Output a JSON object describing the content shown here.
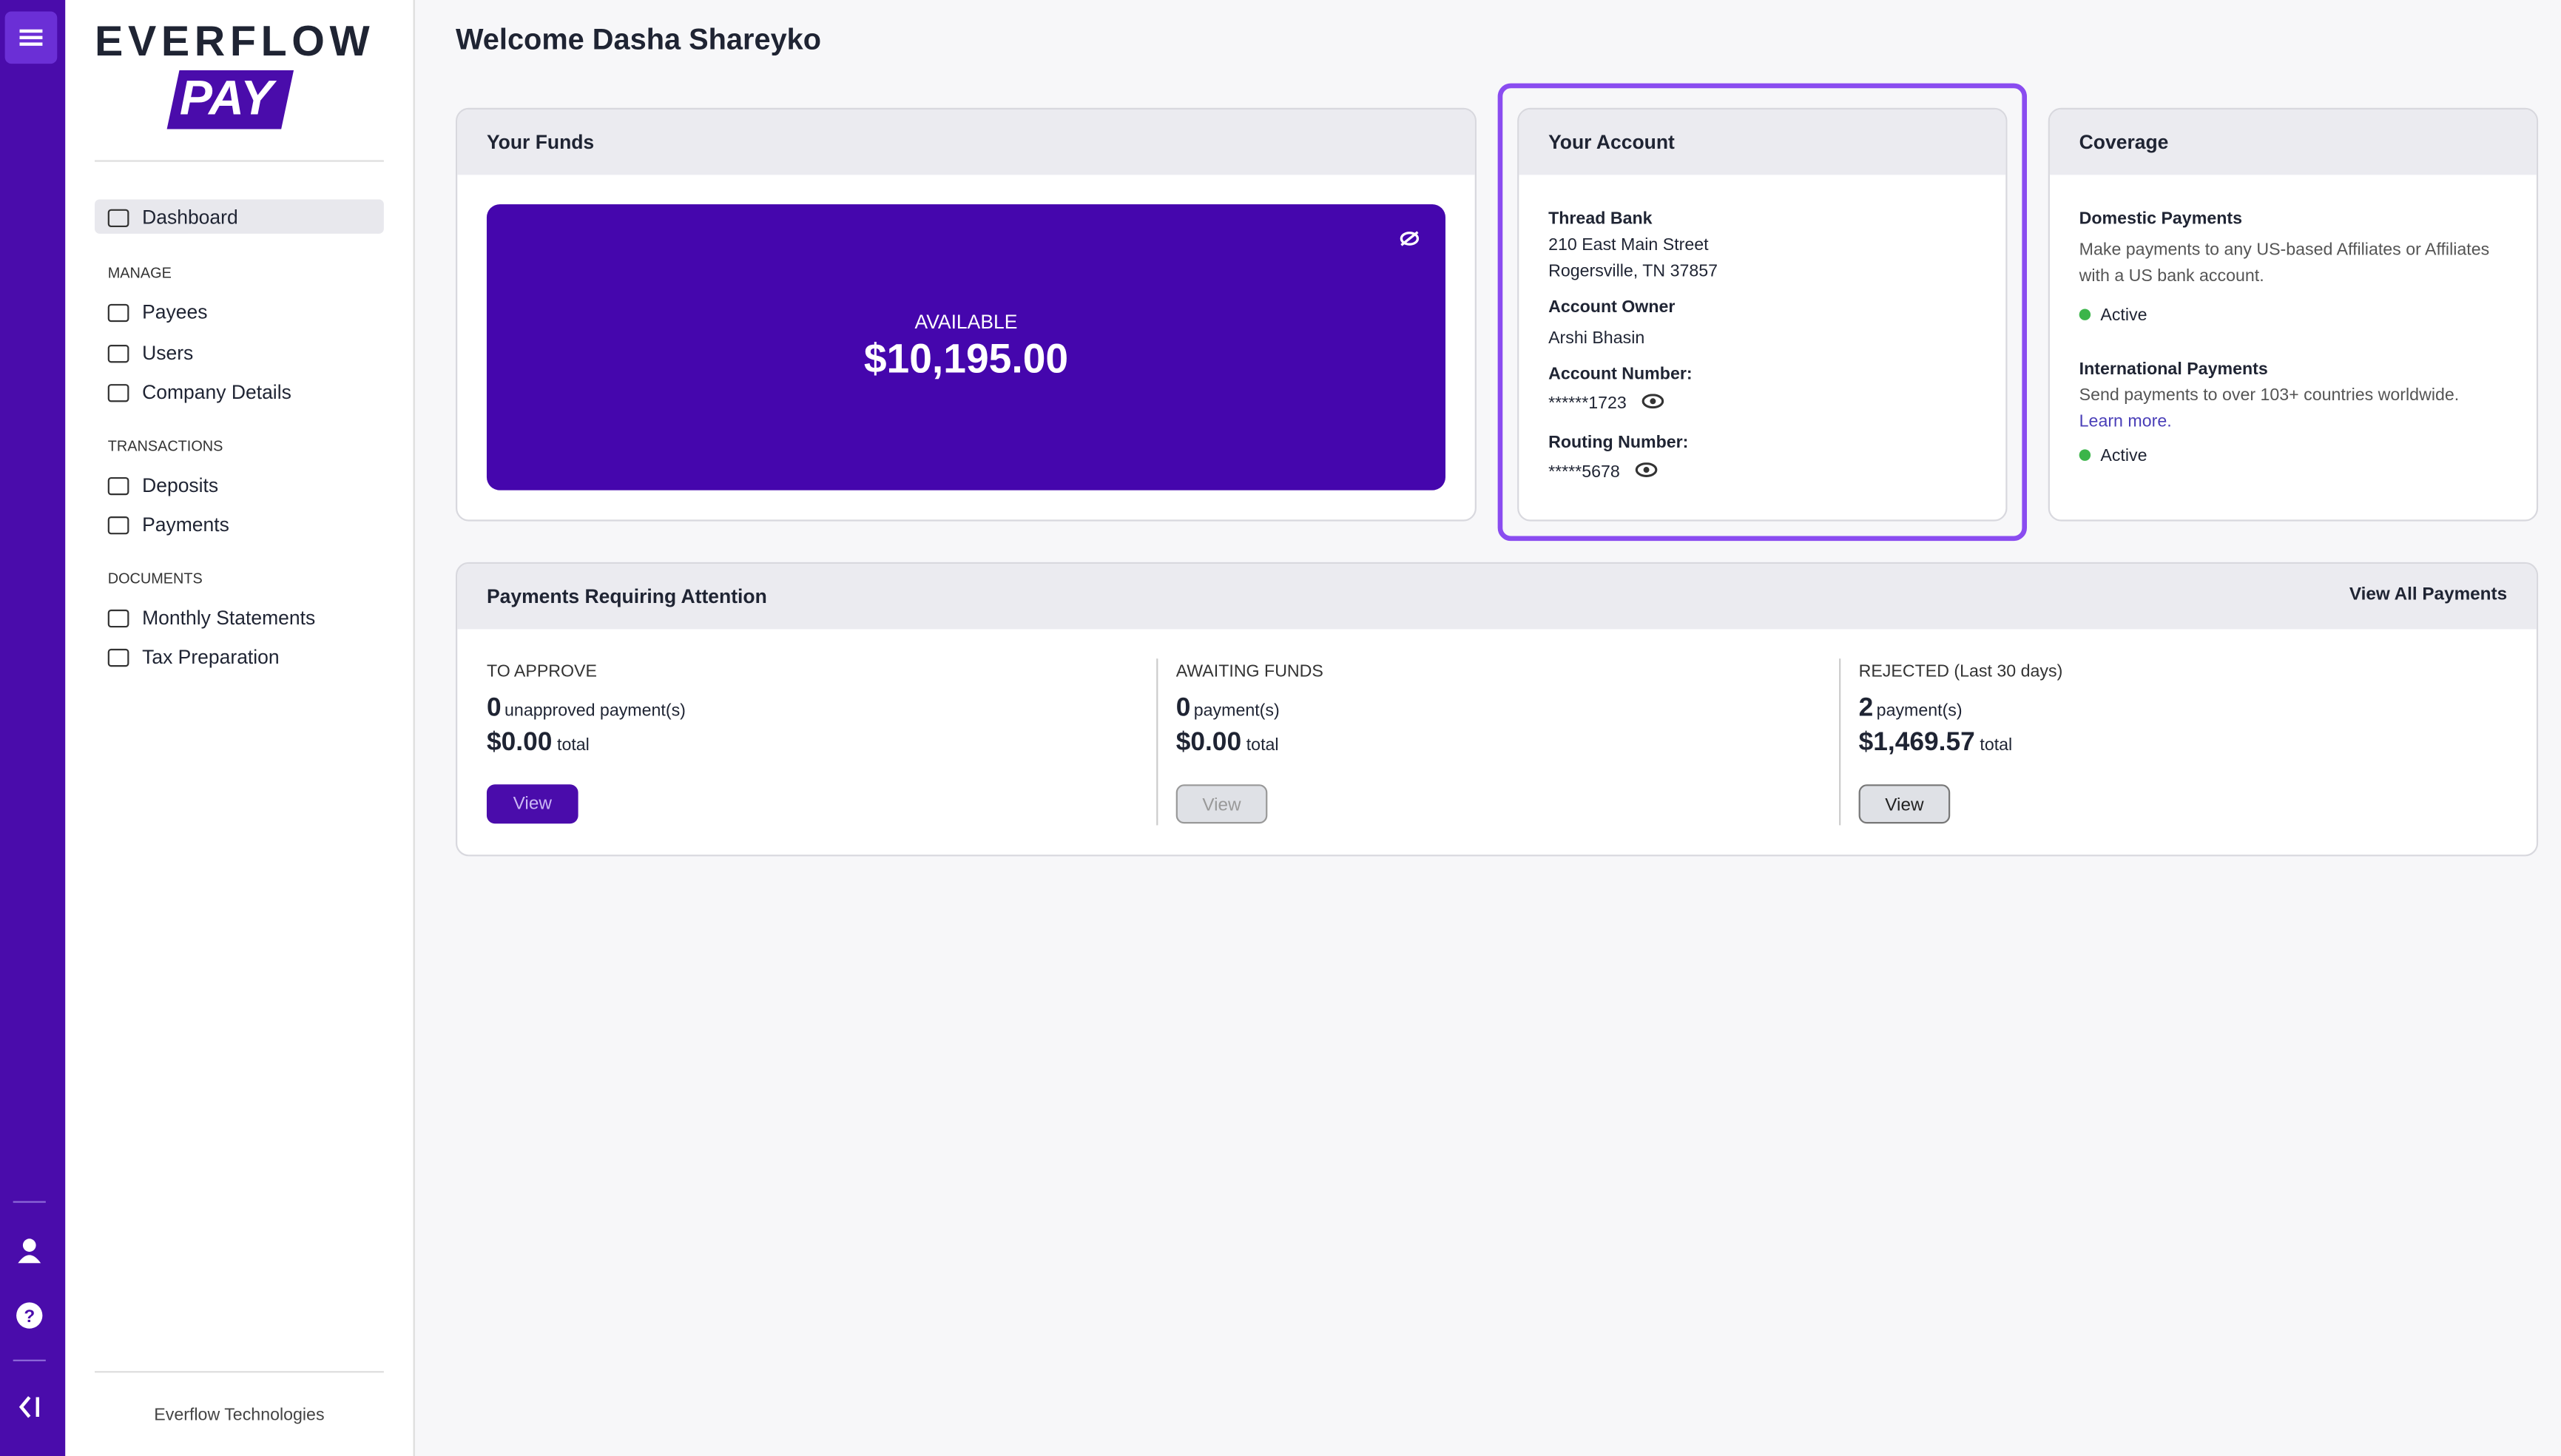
{
  "brand": {
    "name": "EVERFLOW",
    "sub": "PAY"
  },
  "nav": {
    "dashboard": "Dashboard",
    "sections": [
      {
        "title": "MANAGE",
        "items": [
          "Payees",
          "Users",
          "Company Details"
        ]
      },
      {
        "title": "TRANSACTIONS",
        "items": [
          "Deposits",
          "Payments"
        ]
      },
      {
        "title": "DOCUMENTS",
        "items": [
          "Monthly Statements",
          "Tax Preparation"
        ]
      }
    ],
    "footer": "Everflow Technologies"
  },
  "header": {
    "title": "Welcome Dasha Shareyko"
  },
  "funds": {
    "title": "Your Funds",
    "label": "AVAILABLE",
    "amount": "$10,195.00"
  },
  "account": {
    "title": "Your Account",
    "bank": "Thread Bank",
    "address": [
      "210 East Main Street",
      "Rogersville, TN 37857"
    ],
    "owner_label": "Account Owner",
    "owner": "Arshi Bhasin",
    "number_label": "Account Number:",
    "number": "******1723",
    "routing_label": "Routing Number:",
    "routing": "*****5678"
  },
  "coverage": {
    "title": "Coverage",
    "items": [
      {
        "title": "Domestic Payments",
        "desc": "Make payments to any US-based Affiliates or Affiliates with a US bank account.",
        "status": "Active"
      },
      {
        "title": "International Payments",
        "desc": "Send payments to over 103+ countries worldwide.",
        "link": "Learn more.",
        "status": "Active"
      }
    ]
  },
  "attention": {
    "title": "Payments Requiring Attention",
    "link": "View All Payments",
    "columns": [
      {
        "label": "TO APPROVE",
        "count": "0",
        "count_unit": "unapproved payment(s)",
        "total": "$0.00",
        "total_unit": "total",
        "button": "View"
      },
      {
        "label": "AWAITING FUNDS",
        "count": "0",
        "count_unit": "payment(s)",
        "total": "$0.00",
        "total_unit": "total",
        "button": "View"
      },
      {
        "label": "REJECTED (Last 30 days)",
        "count": "2",
        "count_unit": "payment(s)",
        "total": "$1,469.57",
        "total_unit": "total",
        "button": "View"
      }
    ]
  }
}
